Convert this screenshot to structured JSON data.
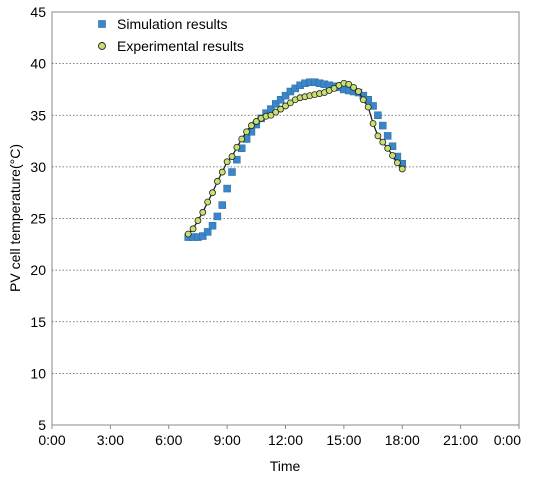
{
  "chart_data": {
    "type": "scatter",
    "title": "",
    "xlabel": "Time",
    "ylabel": "PV cell temperature(°C)",
    "xlim": [
      "0:00",
      "24:00"
    ],
    "ylim": [
      5,
      45
    ],
    "x_ticks": [
      "0:00",
      "3:00",
      "6:00",
      "9:00",
      "12:00",
      "15:00",
      "18:00",
      "21:00",
      "0:00"
    ],
    "y_ticks": [
      "5",
      "10",
      "15",
      "20",
      "25",
      "30",
      "35",
      "40",
      "45"
    ],
    "grid": "horizontal",
    "legend_position": "top-left",
    "series": [
      {
        "name": "Simulation results",
        "color": "#3a86c8",
        "marker": "square",
        "x": [
          "7:00",
          "7:15",
          "7:30",
          "7:45",
          "8:00",
          "8:15",
          "8:30",
          "8:45",
          "9:00",
          "9:15",
          "9:30",
          "9:45",
          "10:00",
          "10:15",
          "10:30",
          "10:45",
          "11:00",
          "11:15",
          "11:30",
          "11:45",
          "12:00",
          "12:15",
          "12:30",
          "12:45",
          "13:00",
          "13:15",
          "13:30",
          "13:45",
          "14:00",
          "14:15",
          "14:30",
          "14:45",
          "15:00",
          "15:15",
          "15:30",
          "15:45",
          "16:00",
          "16:15",
          "16:30",
          "16:45",
          "17:00",
          "17:15",
          "17:30",
          "17:45",
          "18:00"
        ],
        "values": [
          23.2,
          23.2,
          23.2,
          23.3,
          23.7,
          24.3,
          25.2,
          26.3,
          27.9,
          29.5,
          30.7,
          31.8,
          32.7,
          33.4,
          34.1,
          34.7,
          35.2,
          35.6,
          36.1,
          36.5,
          36.9,
          37.3,
          37.6,
          37.9,
          38.1,
          38.2,
          38.2,
          38.1,
          38.0,
          37.9,
          37.8,
          37.7,
          37.5,
          37.4,
          37.3,
          37.2,
          36.9,
          36.5,
          35.9,
          35.0,
          34.0,
          33.0,
          32.0,
          31.0,
          30.3
        ]
      },
      {
        "name": "Experimental results",
        "color": "#c8e070",
        "marker": "circle",
        "x": [
          "7:00",
          "7:15",
          "7:30",
          "7:45",
          "8:00",
          "8:15",
          "8:30",
          "8:45",
          "9:00",
          "9:15",
          "9:30",
          "9:45",
          "10:00",
          "10:15",
          "10:30",
          "10:45",
          "11:00",
          "11:15",
          "11:30",
          "11:45",
          "12:00",
          "12:15",
          "12:30",
          "12:45",
          "13:00",
          "13:15",
          "13:30",
          "13:45",
          "14:00",
          "14:15",
          "14:30",
          "14:45",
          "15:00",
          "15:15",
          "15:30",
          "15:45",
          "16:00",
          "16:15",
          "16:30",
          "16:45",
          "17:00",
          "17:15",
          "17:30",
          "17:45",
          "18:00"
        ],
        "values": [
          23.5,
          24.0,
          24.8,
          25.6,
          26.6,
          27.5,
          28.6,
          29.5,
          30.5,
          31.0,
          31.9,
          32.7,
          33.4,
          34.0,
          34.4,
          34.7,
          34.9,
          35.0,
          35.3,
          35.6,
          35.9,
          36.2,
          36.5,
          36.7,
          36.8,
          36.9,
          37.0,
          37.1,
          37.2,
          37.4,
          37.6,
          37.9,
          38.1,
          38.0,
          37.7,
          37.3,
          36.5,
          35.8,
          34.2,
          33.0,
          32.4,
          31.8,
          31.1,
          30.4,
          29.8
        ]
      }
    ]
  }
}
